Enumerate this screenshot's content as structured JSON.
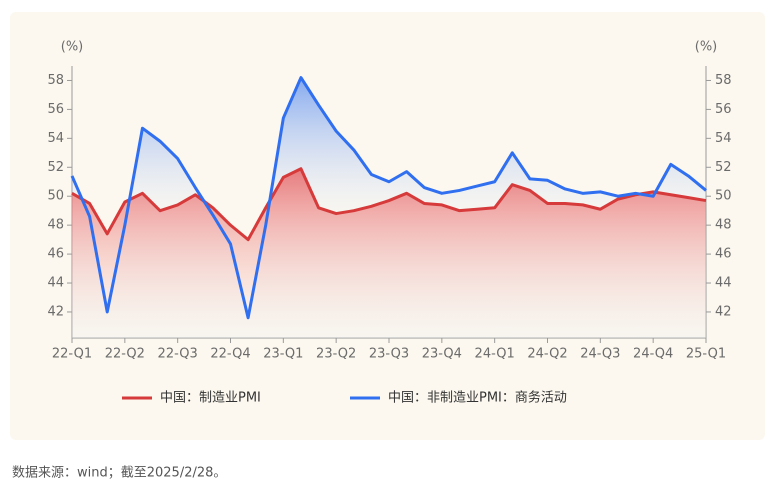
{
  "chart_data": {
    "type": "line",
    "y_label": "(%)",
    "y2_label": "(%)",
    "categories": [
      "22-Q1",
      null,
      null,
      "22-Q2",
      null,
      null,
      "22-Q3",
      null,
      null,
      "22-Q4",
      null,
      null,
      "23-Q1",
      null,
      null,
      "23-Q2",
      null,
      null,
      "23-Q3",
      null,
      null,
      "23-Q4",
      null,
      null,
      "24-Q1",
      null,
      null,
      "24-Q2",
      null,
      null,
      "24-Q3",
      null,
      null,
      "24-Q4",
      null,
      null,
      "25-Q1"
    ],
    "series": [
      {
        "name": "中国：制造业PMI",
        "color": "#d63a3a",
        "values": [
          50.2,
          49.5,
          47.4,
          49.6,
          50.2,
          49.0,
          49.4,
          50.1,
          49.2,
          48.0,
          47.0,
          49.2,
          51.3,
          51.9,
          49.2,
          48.8,
          49.0,
          49.3,
          49.7,
          50.2,
          49.5,
          49.4,
          49.0,
          49.1,
          49.2,
          50.8,
          50.4,
          49.5,
          49.5,
          49.4,
          49.1,
          49.8,
          50.1,
          50.3,
          50.1,
          49.9,
          49.7
        ]
      },
      {
        "name": "中国：非制造业PMI：商务活动",
        "color": "#2f6ff0",
        "values": [
          51.4,
          48.6,
          42.0,
          48.0,
          54.7,
          53.8,
          52.6,
          50.6,
          48.7,
          46.7,
          41.6,
          48.0,
          55.4,
          58.2,
          56.3,
          54.5,
          53.2,
          51.5,
          51.0,
          51.7,
          50.6,
          50.2,
          50.4,
          50.7,
          51.0,
          53.0,
          51.2,
          51.1,
          50.5,
          50.2,
          50.3,
          50.0,
          50.2,
          50.0,
          52.2,
          51.4,
          50.4
        ]
      }
    ],
    "ylim": [
      40.2,
      59.0
    ],
    "yticks": [
      42,
      44,
      46,
      48,
      50,
      52,
      54,
      56,
      58
    ],
    "y2lim": [
      40.2,
      59.0
    ],
    "y2ticks": [
      42,
      44,
      46,
      48,
      50,
      52,
      54,
      56,
      58
    ],
    "legend": "bottom",
    "source": "数据来源：wind；截至2025/2/28。"
  }
}
